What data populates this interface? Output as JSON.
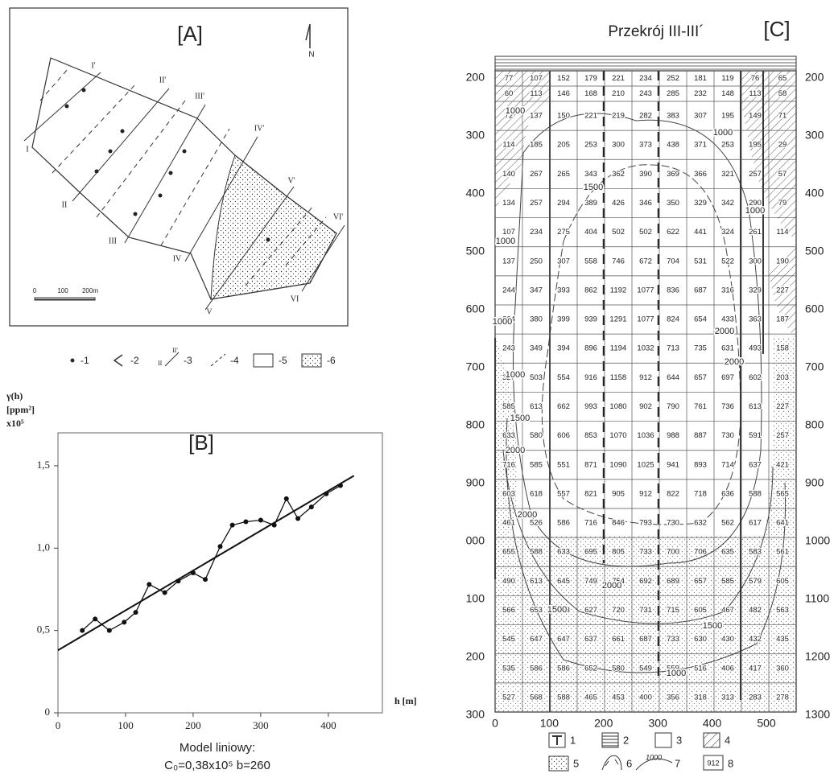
{
  "panel_a": {
    "title": "[A]",
    "north": "N",
    "sections": [
      [
        "I",
        "I'"
      ],
      [
        "II",
        "II'"
      ],
      [
        "III",
        "III'"
      ],
      [
        "IV",
        "IV'"
      ],
      [
        "V",
        "V'"
      ],
      [
        "VI",
        "VI'"
      ]
    ],
    "scale_labels": [
      "0",
      "100",
      "200m"
    ],
    "legend": [
      "-1",
      "-2",
      "-3",
      "-4",
      "-5",
      "-6"
    ],
    "legend_section_labels": [
      "II",
      "II'"
    ]
  },
  "chart_data": {
    "type": "line",
    "title": "[B]",
    "y_label": [
      "γ(h)",
      "[ppm²]",
      "x10⁵"
    ],
    "x_label": "h [m]",
    "x": [
      36,
      55,
      76,
      98,
      115,
      135,
      158,
      178,
      200,
      218,
      240,
      258,
      278,
      300,
      320,
      338,
      355,
      375,
      397,
      418
    ],
    "series": [
      {
        "color": "#111111",
        "values": [
          0.5,
          0.57,
          0.5,
          0.55,
          0.61,
          0.78,
          0.73,
          0.8,
          0.85,
          0.81,
          1.01,
          1.14,
          1.16,
          1.17,
          1.14,
          1.3,
          1.18,
          1.25,
          1.33,
          1.38
        ]
      }
    ],
    "model_line": {
      "x": [
        0,
        438
      ],
      "y": [
        0.38,
        1.44
      ]
    },
    "xlim": [
      0,
      480
    ],
    "ylim": [
      0,
      1.7
    ],
    "xticks": [
      0,
      100,
      200,
      300,
      400
    ],
    "yticks": [
      0,
      {
        "value": 0.5,
        "label": "0,5"
      },
      {
        "value": 1.0,
        "label": "1,0"
      },
      {
        "value": 1.5,
        "label": "1,5"
      }
    ],
    "caption": [
      "Model liniowy:",
      "C₀=0,38x10⁵  b=260"
    ]
  },
  "panel_c": {
    "title": "Przekrój III-III´",
    "tag": "[C]",
    "rows": [
      [
        77,
        107,
        152,
        179,
        221,
        234,
        252,
        181,
        119,
        76,
        65
      ],
      [
        60,
        113,
        146,
        168,
        210,
        243,
        285,
        232,
        148,
        113,
        58
      ],
      [
        72,
        137,
        150,
        221,
        219,
        282,
        383,
        307,
        195,
        149,
        71
      ],
      [
        114,
        185,
        205,
        253,
        300,
        373,
        438,
        371,
        253,
        195,
        29
      ],
      [
        140,
        267,
        265,
        343,
        362,
        390,
        369,
        366,
        321,
        257,
        57
      ],
      [
        134,
        257,
        294,
        389,
        426,
        346,
        350,
        329,
        342,
        290,
        79
      ],
      [
        107,
        234,
        275,
        404,
        502,
        502,
        622,
        441,
        324,
        261,
        114
      ],
      [
        137,
        250,
        307,
        558,
        746,
        672,
        704,
        531,
        522,
        300,
        190
      ],
      [
        244,
        347,
        393,
        862,
        1192,
        1077,
        836,
        687,
        316,
        329,
        227
      ],
      [
        264,
        380,
        399,
        939,
        1291,
        1077,
        824,
        654,
        433,
        363,
        187
      ],
      [
        243,
        349,
        394,
        896,
        1194,
        1032,
        713,
        735,
        631,
        493,
        158
      ],
      [
        327,
        503,
        554,
        916,
        1158,
        912,
        644,
        657,
        697,
        602,
        203
      ],
      [
        585,
        613,
        662,
        993,
        1080,
        902,
        790,
        761,
        736,
        613,
        227
      ],
      [
        633,
        580,
        606,
        853,
        1070,
        1036,
        988,
        887,
        730,
        591,
        257
      ],
      [
        716,
        585,
        551,
        871,
        1090,
        1025,
        941,
        893,
        714,
        637,
        421
      ],
      [
        603,
        618,
        557,
        821,
        905,
        912,
        822,
        718,
        636,
        588,
        565
      ],
      [
        461,
        526,
        586,
        716,
        846,
        793,
        730,
        632,
        562,
        617,
        641
      ],
      [
        655,
        588,
        633,
        695,
        805,
        733,
        700,
        706,
        635,
        583,
        561
      ],
      [
        490,
        613,
        645,
        749,
        754,
        692,
        689,
        657,
        585,
        579,
        605
      ],
      [
        566,
        653,
        653,
        627,
        720,
        731,
        715,
        605,
        467,
        482,
        563
      ],
      [
        545,
        647,
        647,
        637,
        661,
        687,
        733,
        630,
        430,
        432,
        435
      ],
      [
        535,
        586,
        586,
        652,
        580,
        549,
        559,
        516,
        406,
        417,
        360
      ],
      [
        527,
        568,
        588,
        465,
        453,
        400,
        356,
        318,
        313,
        283,
        278
      ]
    ],
    "left_labels": [
      "200",
      "300",
      "400",
      "500",
      "600",
      "700",
      "800",
      "900",
      "000",
      "100",
      "200",
      "300"
    ],
    "right_labels": [
      200,
      300,
      400,
      500,
      600,
      700,
      800,
      900,
      1000,
      1100,
      1200,
      1300
    ],
    "x_labels": [
      0,
      100,
      200,
      300,
      400,
      500
    ],
    "contour_labels": [
      "1000",
      "1500",
      "1000",
      "1000",
      "1000",
      "1000",
      "1000",
      "1500",
      "2000",
      "2000",
      "2000",
      "2000",
      "2000",
      "1500",
      "1500",
      "1000"
    ],
    "legend": [
      "1",
      "2",
      "3",
      "4",
      "5",
      "6",
      "7",
      "8"
    ],
    "legend_contour": "1000",
    "legend_box": "912"
  }
}
